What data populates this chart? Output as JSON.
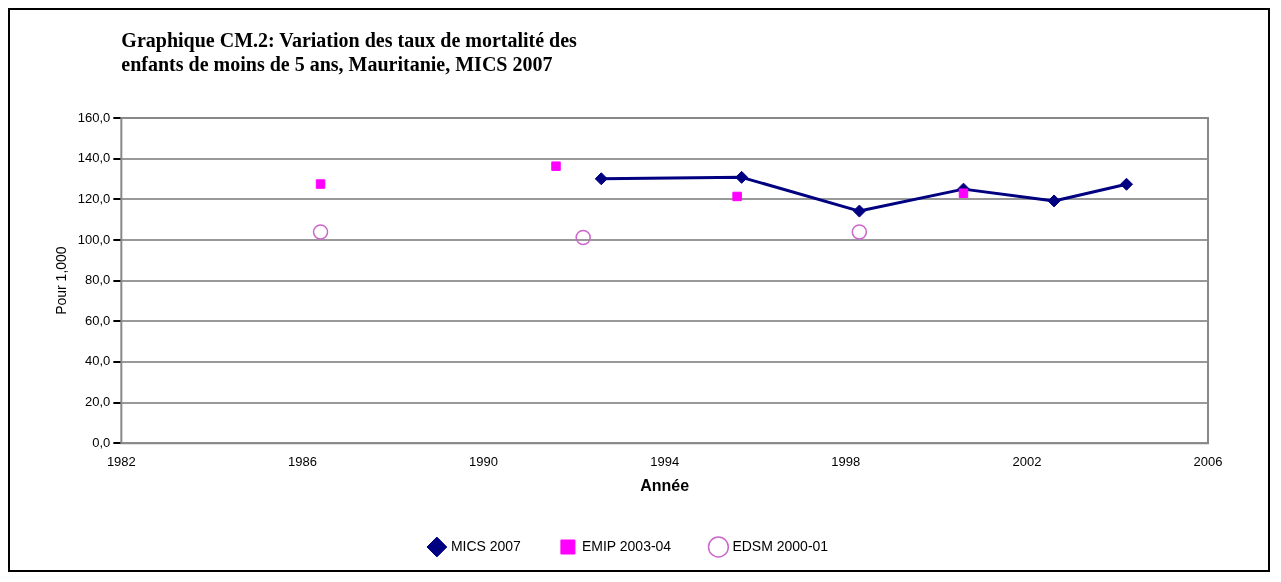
{
  "chart_data": {
    "type": "line",
    "title": [
      "Graphique CM.2: Variation des taux de mortalité des",
      "enfants de moins de 5 ans, Mauritanie, MICS 2007"
    ],
    "xlabel": "Année",
    "ylabel": "Pour 1,000",
    "xlim": [
      1982,
      2006
    ],
    "xticks": [
      1982,
      1986,
      1990,
      1994,
      1998,
      2002,
      2006
    ],
    "ylim": [
      0,
      160
    ],
    "yticks": [
      {
        "value": 0,
        "label": "0,0"
      },
      {
        "value": 20,
        "label": "20,0"
      },
      {
        "value": 40,
        "label": "40,0"
      },
      {
        "value": 60,
        "label": "60,0"
      },
      {
        "value": 80,
        "label": "80,0"
      },
      {
        "value": 100,
        "label": "100,0"
      },
      {
        "value": 120,
        "label": "120,0"
      },
      {
        "value": 140,
        "label": "140,0"
      },
      {
        "value": 160,
        "label": "160,0"
      }
    ],
    "grid": "y",
    "legend": "bottom",
    "series": [
      {
        "name": "MICS 2007",
        "color": "#000080",
        "marker": "diamond",
        "x": [
          1992.6,
          1995.7,
          1998.3,
          2000.6,
          2002.6,
          2004.2
        ],
        "values": [
          130.1,
          130.8,
          114.2,
          125.0,
          119.2,
          127.4
        ]
      },
      {
        "name": "EMIP 2003-04",
        "type": "scatter",
        "color": "#ff00ff",
        "marker": "square",
        "x": [
          1986.4,
          1991.6,
          1995.6,
          2000.6
        ],
        "values": [
          127.5,
          136.3,
          121.4,
          123.0
        ]
      },
      {
        "name": "EDSM 2000-01",
        "type": "scatter",
        "color": "#cc66cc",
        "marker": "circle",
        "x": [
          1986.4,
          1992.2,
          1998.3
        ],
        "values": [
          103.9,
          101.2,
          103.9
        ]
      }
    ]
  }
}
